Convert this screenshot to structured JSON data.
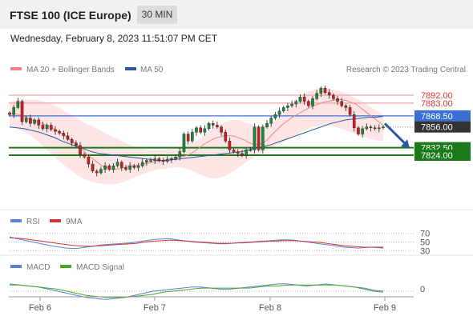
{
  "header": {
    "title": "FTSE 100 (ICE Europe)",
    "timeframe": "30 MIN",
    "datetime": "Wednesday, February 8, 2023 11:51:07 PM CET"
  },
  "legend": {
    "ma20_label": "MA 20 + Bollinger Bands",
    "ma50_label": "MA 50",
    "credit": "Research © 2023 Trading Central",
    "rsi_label": "RSI",
    "rsi_ma_label": "9MA",
    "macd_label": "MACD",
    "macd_signal_label": "MACD Signal"
  },
  "colors": {
    "resistance": "#f4a0a0",
    "support": "#1a7a1a",
    "pivot": "#3c6fd6",
    "last_price_bg": "#333333",
    "candle_up": "#1a8a3a",
    "candle_down": "#cc1f1f",
    "bollinger_fill": "#fde0e0",
    "ma20": "#e88a8a",
    "ma50": "#2c5aa0",
    "arrow": "#2c5aa0",
    "rsi": "#5b7fd6",
    "rsi_ma": "#d33333",
    "macd": "#5b7fd6",
    "macd_signal": "#44aa22"
  },
  "chart_data": [
    {
      "type": "candlestick",
      "ylim": [
        7766,
        7911
      ],
      "x_ticks": [
        "Feb 6",
        "Feb 7",
        "Feb 8",
        "Feb 9"
      ],
      "levels": [
        {
          "value": 7892.0,
          "label": "7892.00",
          "kind": "resistance"
        },
        {
          "value": 7883.0,
          "label": "7883.00",
          "kind": "resistance"
        },
        {
          "value": 7868.5,
          "label": "7868.50",
          "kind": "pivot"
        },
        {
          "value": 7856.0,
          "label": "7856.00",
          "kind": "last"
        },
        {
          "value": 7832.5,
          "label": "7832.50",
          "kind": "support"
        },
        {
          "value": 7824.0,
          "label": "7824.00",
          "kind": "support"
        }
      ],
      "close": [
        7870,
        7878,
        7885,
        7862,
        7866,
        7860,
        7864,
        7858,
        7854,
        7858,
        7853,
        7851,
        7849,
        7846,
        7842,
        7838,
        7835,
        7825,
        7822,
        7814,
        7806,
        7804,
        7808,
        7812,
        7808,
        7812,
        7816,
        7810,
        7808,
        7812,
        7810,
        7812,
        7816,
        7818,
        7818,
        7820,
        7818,
        7817,
        7819,
        7820,
        7822,
        7828,
        7848,
        7840,
        7850,
        7855,
        7850,
        7854,
        7860,
        7858,
        7856,
        7850,
        7840,
        7830,
        7828,
        7826,
        7824,
        7830,
        7830,
        7856,
        7830,
        7856,
        7860,
        7866,
        7870,
        7874,
        7878,
        7880,
        7882,
        7885,
        7890,
        7885,
        7880,
        7888,
        7894,
        7900,
        7895,
        7892,
        7888,
        7885,
        7880,
        7878,
        7870,
        7855,
        7848,
        7854,
        7856,
        7855,
        7854,
        7855,
        7856
      ],
      "ma20": [
        7871,
        7871,
        7870,
        7868,
        7866,
        7864,
        7862,
        7860,
        7858,
        7856,
        7853,
        7850,
        7846,
        7842,
        7838,
        7834,
        7829,
        7824,
        7820,
        7816,
        7812,
        7810,
        7808,
        7808,
        7809,
        7810,
        7812,
        7812,
        7813,
        7814,
        7815,
        7816,
        7817,
        7818,
        7819,
        7820,
        7821,
        7822,
        7823,
        7825,
        7828,
        7832,
        7836,
        7839,
        7842,
        7844,
        7845,
        7846,
        7846,
        7845,
        7843,
        7841,
        7838,
        7836,
        7836,
        7838,
        7842,
        7848,
        7853,
        7858,
        7862,
        7866,
        7869,
        7872,
        7875,
        7878,
        7880,
        7882,
        7884,
        7885,
        7886,
        7887,
        7887,
        7886,
        7884,
        7882,
        7878,
        7874,
        7870,
        7866,
        7862,
        7858
      ],
      "ma50": [
        7856,
        7855,
        7854,
        7852,
        7850,
        7847,
        7844,
        7840,
        7837,
        7834,
        7831,
        7828,
        7826,
        7825,
        7824,
        7823,
        7822,
        7821,
        7820,
        7819,
        7818,
        7818,
        7819,
        7820,
        7821,
        7822,
        7823,
        7824,
        7825,
        7826,
        7827,
        7828,
        7830,
        7832,
        7834,
        7836,
        7839,
        7842,
        7845,
        7848,
        7851,
        7854,
        7857,
        7860,
        7862,
        7864,
        7865,
        7866,
        7867,
        7867,
        7868
      ],
      "bb_upper": [
        7885,
        7886,
        7887,
        7887,
        7886,
        7884,
        7880,
        7876,
        7871,
        7866,
        7861,
        7857,
        7853,
        7848,
        7844,
        7840,
        7836,
        7833,
        7831,
        7830,
        7830,
        7831,
        7832,
        7834,
        7836,
        7840,
        7846,
        7852,
        7858,
        7862,
        7864,
        7863,
        7860,
        7857,
        7856,
        7860,
        7866,
        7874,
        7882,
        7890,
        7896,
        7899,
        7900,
        7899,
        7897,
        7894,
        7890,
        7886,
        7880,
        7875,
        7870
      ],
      "bb_lower": [
        7856,
        7854,
        7850,
        7845,
        7838,
        7830,
        7822,
        7815,
        7808,
        7802,
        7797,
        7794,
        7792,
        7791,
        7791,
        7793,
        7796,
        7800,
        7803,
        7806,
        7808,
        7809,
        7810,
        7810,
        7808,
        7804,
        7800,
        7798,
        7798,
        7801,
        7806,
        7812,
        7818,
        7824,
        7828,
        7832,
        7836,
        7840,
        7845,
        7850,
        7854,
        7857,
        7858,
        7857,
        7855,
        7852,
        7849,
        7846,
        7843,
        7841,
        7840
      ]
    },
    {
      "type": "line",
      "name": "RSI",
      "ylim": [
        25,
        75
      ],
      "y_ticks": [
        70,
        50,
        30
      ],
      "series": [
        {
          "name": "RSI",
          "values": [
            62,
            58,
            55,
            52,
            49,
            46,
            43,
            40,
            38,
            36,
            35,
            36,
            38,
            40,
            42,
            44,
            45,
            46,
            47,
            48,
            50,
            52,
            54,
            56,
            57,
            58,
            56,
            54,
            52,
            50,
            49,
            48,
            47,
            46,
            46,
            47,
            48,
            49,
            50,
            51,
            52,
            53,
            54,
            55,
            55,
            54,
            52,
            50,
            48,
            46,
            44,
            42,
            40,
            38,
            37,
            36,
            37,
            38,
            37,
            36
          ]
        },
        {
          "name": "9MA",
          "values": [
            60,
            59,
            58,
            56,
            54,
            52,
            50,
            48,
            46,
            44,
            42,
            41,
            40,
            40,
            41,
            42,
            43,
            44,
            45,
            46,
            47,
            49,
            51,
            52,
            53,
            54,
            54,
            53,
            52,
            51,
            50,
            49,
            48,
            47,
            47,
            47,
            48,
            48,
            49,
            50,
            51,
            52,
            52,
            53,
            53,
            53,
            52,
            51,
            50,
            49,
            47,
            45,
            43,
            41,
            40,
            39,
            38,
            38,
            38,
            38
          ]
        }
      ]
    },
    {
      "type": "line",
      "name": "MACD",
      "y_ticks": [
        0
      ],
      "series": [
        {
          "name": "MACD",
          "values": [
            7,
            6,
            5,
            4,
            2,
            0,
            -2,
            -4,
            -6,
            -7,
            -8,
            -7,
            -6,
            -4,
            -2,
            0,
            1,
            2,
            3,
            4,
            4,
            3,
            2,
            2,
            3,
            4,
            5,
            6,
            7,
            7,
            6,
            5,
            6,
            7,
            6,
            5,
            4,
            2,
            0,
            -1
          ]
        },
        {
          "name": "MACD Signal",
          "values": [
            6,
            6,
            5,
            4,
            3,
            2,
            0,
            -2,
            -4,
            -5,
            -6,
            -6,
            -6,
            -5,
            -4,
            -3,
            -1,
            0,
            1,
            2,
            3,
            3,
            3,
            3,
            3,
            3,
            4,
            5,
            5,
            6,
            6,
            6,
            6,
            6,
            6,
            5,
            4,
            3,
            1,
            0
          ]
        }
      ]
    }
  ]
}
